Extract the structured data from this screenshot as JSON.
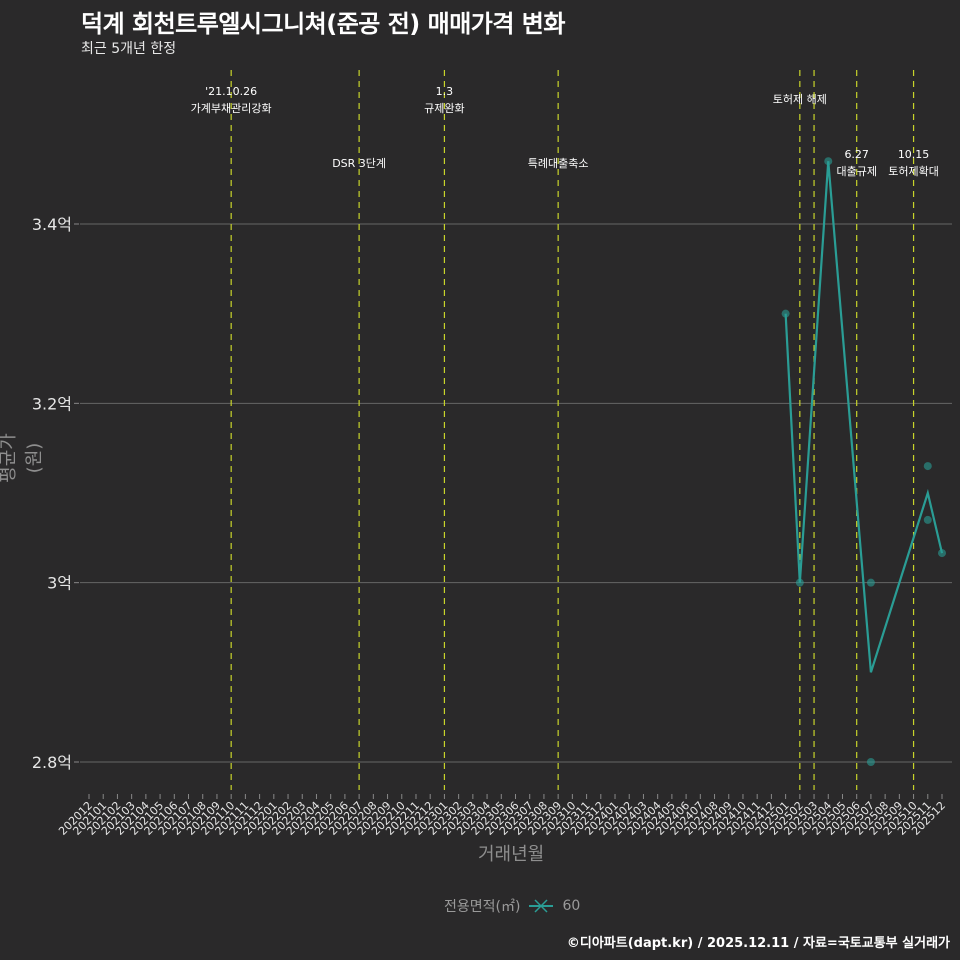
{
  "header": {
    "title": "덕계 회천트루엘시그니쳐(준공 전) 매매가격 변화",
    "subtitle": "최근 5개년 한정"
  },
  "axes": {
    "xlabel": "거래년월",
    "ylabel": "평균가(원)"
  },
  "legend": {
    "title": "전용면적(㎡)",
    "item": "60",
    "color": "#2a9d95"
  },
  "caption": "©디아파트(dapt.kr) / 2025.12.11 / 자료=국토교통부 실거래가",
  "colors": {
    "background": "#2a292a",
    "line": "#2a9d95",
    "event_line": "#c8d42a",
    "grid": "#666666"
  },
  "chart_data": {
    "type": "line",
    "title": "덕계 회천트루엘시그니쳐(준공 전) 매매가격 변화",
    "subtitle": "최근 5개년 한정",
    "xlabel": "거래년월",
    "ylabel": "평균가(원)",
    "categories": [
      "202012",
      "202101",
      "202102",
      "202103",
      "202104",
      "202105",
      "202106",
      "202107",
      "202108",
      "202109",
      "202110",
      "202111",
      "202112",
      "202201",
      "202202",
      "202203",
      "202204",
      "202205",
      "202206",
      "202207",
      "202208",
      "202209",
      "202210",
      "202211",
      "202212",
      "202301",
      "202302",
      "202303",
      "202304",
      "202305",
      "202306",
      "202307",
      "202308",
      "202309",
      "202310",
      "202311",
      "202312",
      "202401",
      "202402",
      "202403",
      "202404",
      "202405",
      "202406",
      "202407",
      "202408",
      "202409",
      "202410",
      "202411",
      "202412",
      "202501",
      "202502",
      "202503",
      "202504",
      "202505",
      "202506",
      "202507",
      "202508",
      "202509",
      "202510",
      "202511",
      "202512"
    ],
    "y_ticks": [
      {
        "value": 2.8,
        "label": "2.8억"
      },
      {
        "value": 3.0,
        "label": "3억"
      },
      {
        "value": 3.2,
        "label": "3.2억"
      },
      {
        "value": 3.4,
        "label": "3.4억"
      }
    ],
    "ylim": [
      2.76,
      3.49
    ],
    "series": [
      {
        "name": "60",
        "line": [
          {
            "x": "202501",
            "y": 3.3
          },
          {
            "x": "202502",
            "y": 3.0
          },
          {
            "x": "202504",
            "y": 3.47
          },
          {
            "x": "202507",
            "y": 2.9
          },
          {
            "x": "202511",
            "y": 3.1
          },
          {
            "x": "202512",
            "y": 3.033
          }
        ],
        "points": [
          {
            "x": "202501",
            "y": 3.3
          },
          {
            "x": "202502",
            "y": 3.0
          },
          {
            "x": "202504",
            "y": 3.47
          },
          {
            "x": "202507",
            "y": 3.0
          },
          {
            "x": "202507",
            "y": 2.8
          },
          {
            "x": "202511",
            "y": 3.13
          },
          {
            "x": "202511",
            "y": 3.07
          },
          {
            "x": "202512",
            "y": 3.033
          }
        ]
      }
    ],
    "events": [
      {
        "x": "202110",
        "label1": "'21.10.26",
        "label2": "가계부채관리강화",
        "row": "top"
      },
      {
        "x": "202207",
        "label1": "",
        "label2": "DSR 3단계",
        "row": "bottom"
      },
      {
        "x": "202301",
        "label1": "1.3",
        "label2": "규제완화",
        "row": "top"
      },
      {
        "x": "202309",
        "label1": "",
        "label2": "특례대출축소",
        "row": "bottom"
      },
      {
        "x": "202502",
        "label1": "",
        "label2": "토허제 해제",
        "row": "top"
      },
      {
        "x": "202503",
        "label1": "",
        "label2": "",
        "row": "none"
      },
      {
        "x": "202506",
        "label1": "6.27",
        "label2": "대출규제",
        "row": "bottom"
      },
      {
        "x": "202510",
        "label1": "10.15",
        "label2": "토허제확대",
        "row": "bottom"
      }
    ],
    "grid": true,
    "legend_position": "bottom"
  }
}
